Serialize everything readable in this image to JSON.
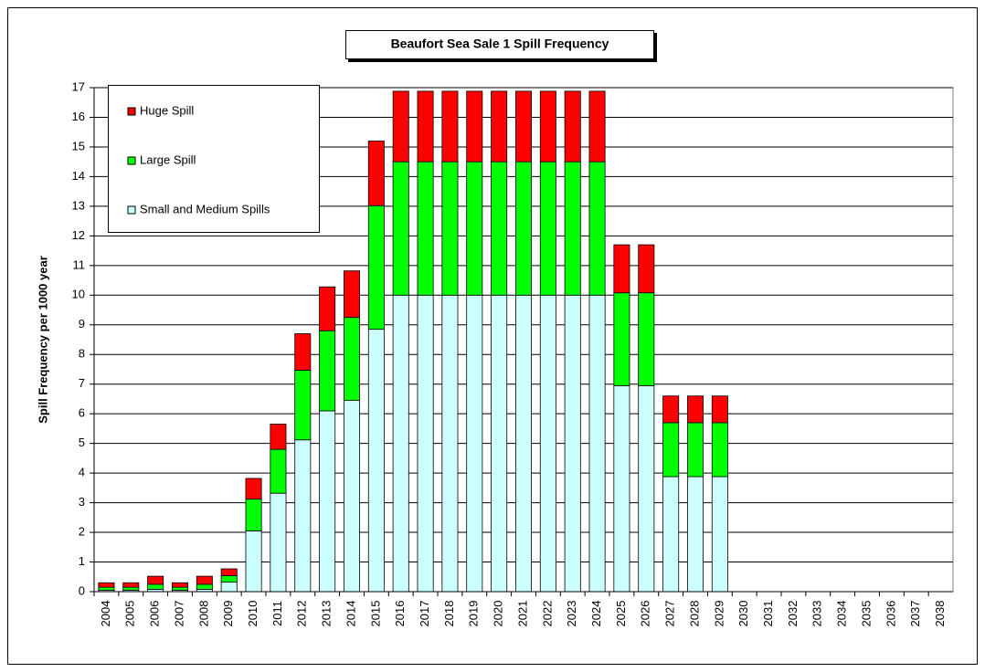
{
  "chart_data": {
    "type": "stacked_bar",
    "title": "Beaufort Sea Sale 1 Spill Frequency",
    "y_label": "Spill Frequency per 1000 year",
    "categories": [
      "2004",
      "2005",
      "2006",
      "2007",
      "2008",
      "2009",
      "2010",
      "2011",
      "2012",
      "2013",
      "2014",
      "2015",
      "2016",
      "2017",
      "2018",
      "2019",
      "2020",
      "2021",
      "2022",
      "2023",
      "2024",
      "2025",
      "2026",
      "2027",
      "2028",
      "2029",
      "2030",
      "2031",
      "2032",
      "2033",
      "2034",
      "2035",
      "2036",
      "2037",
      "2038"
    ],
    "series": [
      {
        "name": "Small and Medium Spills",
        "color": "#ccffff",
        "values": [
          0.05,
          0.05,
          0.08,
          0.05,
          0.08,
          0.32,
          2.05,
          3.32,
          5.12,
          6.1,
          6.45,
          8.85,
          10,
          10,
          10,
          10,
          10,
          10,
          10,
          10,
          10,
          6.95,
          6.95,
          3.88,
          3.88,
          3.88,
          0,
          0,
          0,
          0,
          0,
          0,
          0,
          0,
          0
        ]
      },
      {
        "name": "Large Spill",
        "color": "#00ff00",
        "values": [
          0.1,
          0.1,
          0.17,
          0.1,
          0.17,
          0.22,
          1.07,
          1.48,
          2.35,
          2.7,
          2.8,
          4.17,
          4.5,
          4.5,
          4.5,
          4.5,
          4.5,
          4.5,
          4.5,
          4.5,
          4.5,
          3.13,
          3.13,
          1.82,
          1.82,
          1.82,
          0,
          0,
          0,
          0,
          0,
          0,
          0,
          0,
          0
        ]
      },
      {
        "name": "Huge Spill",
        "color": "#ff0000",
        "values": [
          0.15,
          0.15,
          0.27,
          0.15,
          0.27,
          0.23,
          0.7,
          0.85,
          1.23,
          1.48,
          1.57,
          2.18,
          2.38,
          2.38,
          2.38,
          2.38,
          2.38,
          2.38,
          2.38,
          2.38,
          2.38,
          1.62,
          1.62,
          0.9,
          0.9,
          0.9,
          0,
          0,
          0,
          0,
          0,
          0,
          0,
          0,
          0
        ]
      }
    ],
    "ylim": [
      0,
      17
    ],
    "yticks": [
      0,
      1,
      2,
      3,
      4,
      5,
      6,
      7,
      8,
      9,
      10,
      11,
      12,
      13,
      14,
      15,
      16,
      17
    ],
    "grid": true,
    "legend": "top-left"
  }
}
